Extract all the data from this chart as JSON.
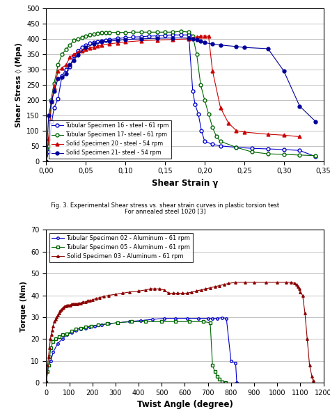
{
  "fig_title1": "Fig. 3. Experimental Shear stress vs. shear strain curves in plastic torsion test",
  "fig_title2": "For annealed steel 1020 [3]",
  "plot1": {
    "xlabel": "Shear Strain γ",
    "ylabel": "Shear Stress ◊ (Mpa)",
    "xlim": [
      0,
      0.35
    ],
    "ylim": [
      0,
      500
    ],
    "xticks": [
      0.0,
      0.05,
      0.1,
      0.15,
      0.2,
      0.25,
      0.3,
      0.35
    ],
    "yticks": [
      0,
      50,
      100,
      150,
      200,
      250,
      300,
      350,
      400,
      450,
      500
    ],
    "xtick_labels": [
      "0,00",
      "0,05",
      "0,10",
      "0,15",
      "0,20",
      "0,25",
      "0,30",
      "0,35"
    ],
    "series": [
      {
        "label": "Tubular Specimen 16 - steel - 61 rpm",
        "color": "#0000cc",
        "marker": "o",
        "markerfill": "white",
        "x": [
          0.0,
          0.003,
          0.007,
          0.01,
          0.015,
          0.02,
          0.025,
          0.03,
          0.035,
          0.04,
          0.045,
          0.05,
          0.055,
          0.06,
          0.065,
          0.07,
          0.075,
          0.08,
          0.09,
          0.1,
          0.11,
          0.12,
          0.13,
          0.14,
          0.15,
          0.16,
          0.17,
          0.18,
          0.185,
          0.188,
          0.192,
          0.196,
          0.2,
          0.21,
          0.22,
          0.24,
          0.26,
          0.28,
          0.3,
          0.32,
          0.34
        ],
        "y": [
          0,
          30,
          130,
          175,
          205,
          280,
          300,
          308,
          345,
          360,
          372,
          380,
          385,
          388,
          391,
          394,
          396,
          398,
          401,
          404,
          406,
          407,
          409,
          410,
          412,
          413,
          413,
          413,
          230,
          185,
          155,
          100,
          65,
          55,
          50,
          45,
          42,
          40,
          38,
          35,
          15
        ]
      },
      {
        "label": "Tubular Specimen 17- steel - 61 rpm",
        "color": "#006600",
        "marker": "o",
        "markerfill": "white",
        "x": [
          0.0,
          0.003,
          0.006,
          0.01,
          0.015,
          0.02,
          0.025,
          0.03,
          0.035,
          0.04,
          0.045,
          0.05,
          0.055,
          0.06,
          0.065,
          0.07,
          0.075,
          0.08,
          0.09,
          0.1,
          0.11,
          0.12,
          0.13,
          0.14,
          0.15,
          0.16,
          0.17,
          0.18,
          0.185,
          0.19,
          0.195,
          0.2,
          0.205,
          0.21,
          0.215,
          0.22,
          0.24,
          0.26,
          0.28,
          0.3,
          0.32,
          0.34
        ],
        "y": [
          0,
          50,
          200,
          255,
          315,
          350,
          365,
          380,
          395,
          400,
          405,
          410,
          413,
          416,
          418,
          420,
          421,
          421,
          421,
          421,
          422,
          422,
          422,
          422,
          422,
          422,
          425,
          422,
          410,
          350,
          250,
          200,
          155,
          110,
          80,
          65,
          45,
          30,
          24,
          22,
          20,
          18
        ]
      },
      {
        "label": "Solid Specimen 20 - steel - 54 rpm",
        "color": "#cc0000",
        "marker": "^",
        "markerfill": "#cc0000",
        "x": [
          0.0,
          0.003,
          0.007,
          0.01,
          0.015,
          0.02,
          0.025,
          0.03,
          0.035,
          0.04,
          0.045,
          0.05,
          0.055,
          0.06,
          0.065,
          0.07,
          0.08,
          0.09,
          0.1,
          0.12,
          0.14,
          0.16,
          0.18,
          0.185,
          0.19,
          0.195,
          0.2,
          0.205,
          0.21,
          0.22,
          0.23,
          0.24,
          0.25,
          0.28,
          0.3,
          0.32
        ],
        "y": [
          0,
          75,
          195,
          240,
          295,
          305,
          315,
          340,
          350,
          357,
          362,
          366,
          370,
          373,
          376,
          380,
          384,
          387,
          390,
          394,
          396,
          398,
          400,
          403,
          406,
          408,
          410,
          408,
          295,
          175,
          125,
          100,
          95,
          88,
          85,
          80
        ]
      },
      {
        "label": "Solid Specimen 21- steel - 54 rpm",
        "color": "#000099",
        "marker": "o",
        "markerfill": "#000099",
        "x": [
          0.0,
          0.003,
          0.007,
          0.01,
          0.015,
          0.02,
          0.025,
          0.03,
          0.035,
          0.04,
          0.05,
          0.06,
          0.07,
          0.08,
          0.09,
          0.1,
          0.12,
          0.14,
          0.16,
          0.18,
          0.185,
          0.19,
          0.195,
          0.2,
          0.21,
          0.22,
          0.24,
          0.25,
          0.28,
          0.3,
          0.32,
          0.34
        ],
        "y": [
          0,
          150,
          195,
          230,
          270,
          275,
          285,
          315,
          330,
          348,
          372,
          383,
          390,
          393,
          395,
          398,
          400,
          402,
          403,
          403,
          400,
          398,
          393,
          388,
          383,
          380,
          375,
          372,
          368,
          295,
          180,
          130
        ]
      }
    ]
  },
  "plot2": {
    "xlabel": "Twist Angle (degree)",
    "ylabel": "Torque (Nm)",
    "xlim": [
      0,
      1200
    ],
    "ylim": [
      0,
      70
    ],
    "xticks": [
      0,
      100,
      200,
      300,
      400,
      500,
      600,
      700,
      800,
      900,
      1000,
      1100,
      1200
    ],
    "yticks": [
      0,
      10,
      20,
      30,
      40,
      50,
      60,
      70
    ],
    "series": [
      {
        "label": "Tubular Specimen 02 - Aluminum - 61 rpm",
        "color": "#0000cc",
        "marker": "o",
        "markerfill": "white",
        "x": [
          0,
          10,
          20,
          30,
          50,
          70,
          90,
          110,
          130,
          150,
          170,
          190,
          210,
          240,
          270,
          310,
          360,
          410,
          460,
          510,
          560,
          610,
          660,
          700,
          720,
          740,
          760,
          780,
          800,
          820,
          825
        ],
        "y": [
          0,
          8,
          10,
          14,
          18,
          20,
          22,
          23,
          24,
          24.5,
          25,
          25.5,
          26,
          26.5,
          27,
          27.5,
          28,
          28.5,
          29,
          29.5,
          29.5,
          29.5,
          29.5,
          29.5,
          29.5,
          29.5,
          29.8,
          29.5,
          10,
          9,
          0
        ]
      },
      {
        "label": "Tubular Specimen 05 - Aluminum - 61 rpm",
        "color": "#006600",
        "marker": "s",
        "markerfill": "white",
        "x": [
          0,
          5,
          10,
          15,
          20,
          30,
          40,
          55,
          70,
          90,
          110,
          130,
          150,
          170,
          195,
          225,
          265,
          310,
          370,
          430,
          500,
          560,
          620,
          680,
          710,
          720,
          730,
          740,
          750,
          760,
          775
        ],
        "y": [
          0,
          5,
          8,
          12,
          16,
          19,
          20,
          21,
          22,
          22.5,
          23.5,
          24.5,
          25,
          25.5,
          26,
          26.5,
          27,
          27.5,
          28,
          28,
          28,
          28,
          28,
          28,
          27.5,
          8,
          5,
          3,
          1.5,
          0.5,
          0
        ]
      },
      {
        "label": "Solid Specimen 03 - Aluminum - 61 rpm",
        "color": "#8b0000",
        "marker": "^",
        "markerfill": "#8b0000",
        "x": [
          0,
          3,
          6,
          10,
          14,
          18,
          22,
          26,
          30,
          35,
          40,
          45,
          50,
          55,
          60,
          65,
          70,
          75,
          80,
          85,
          90,
          95,
          100,
          105,
          110,
          115,
          120,
          125,
          130,
          135,
          140,
          150,
          160,
          170,
          180,
          190,
          200,
          215,
          230,
          250,
          270,
          300,
          330,
          360,
          400,
          430,
          450,
          470,
          490,
          510,
          530,
          550,
          570,
          590,
          610,
          630,
          650,
          670,
          690,
          710,
          730,
          750,
          770,
          790,
          820,
          860,
          900,
          950,
          1000,
          1040,
          1060,
          1075,
          1085,
          1090,
          1095,
          1100,
          1110,
          1120,
          1130,
          1140,
          1150,
          1155
        ],
        "y": [
          1,
          5,
          8,
          12,
          16,
          20,
          22,
          24,
          26,
          28,
          29,
          30,
          31,
          32,
          33,
          33.5,
          34,
          34.5,
          35,
          35.2,
          35.5,
          35.5,
          35.5,
          35.5,
          36,
          36,
          36,
          36,
          36,
          36,
          36.5,
          36.5,
          37,
          37,
          37.5,
          37.5,
          38,
          38.5,
          39,
          39.5,
          40,
          40.5,
          41,
          41.5,
          42,
          42.5,
          43,
          43,
          43,
          42.5,
          41,
          41,
          41,
          41,
          41,
          41.5,
          42,
          42.5,
          43,
          43.5,
          44,
          44.5,
          45,
          45.5,
          46,
          46,
          46,
          46,
          46,
          46,
          46,
          45.5,
          45,
          44,
          43,
          41.5,
          40,
          32,
          20,
          8,
          3,
          1
        ]
      }
    ]
  }
}
